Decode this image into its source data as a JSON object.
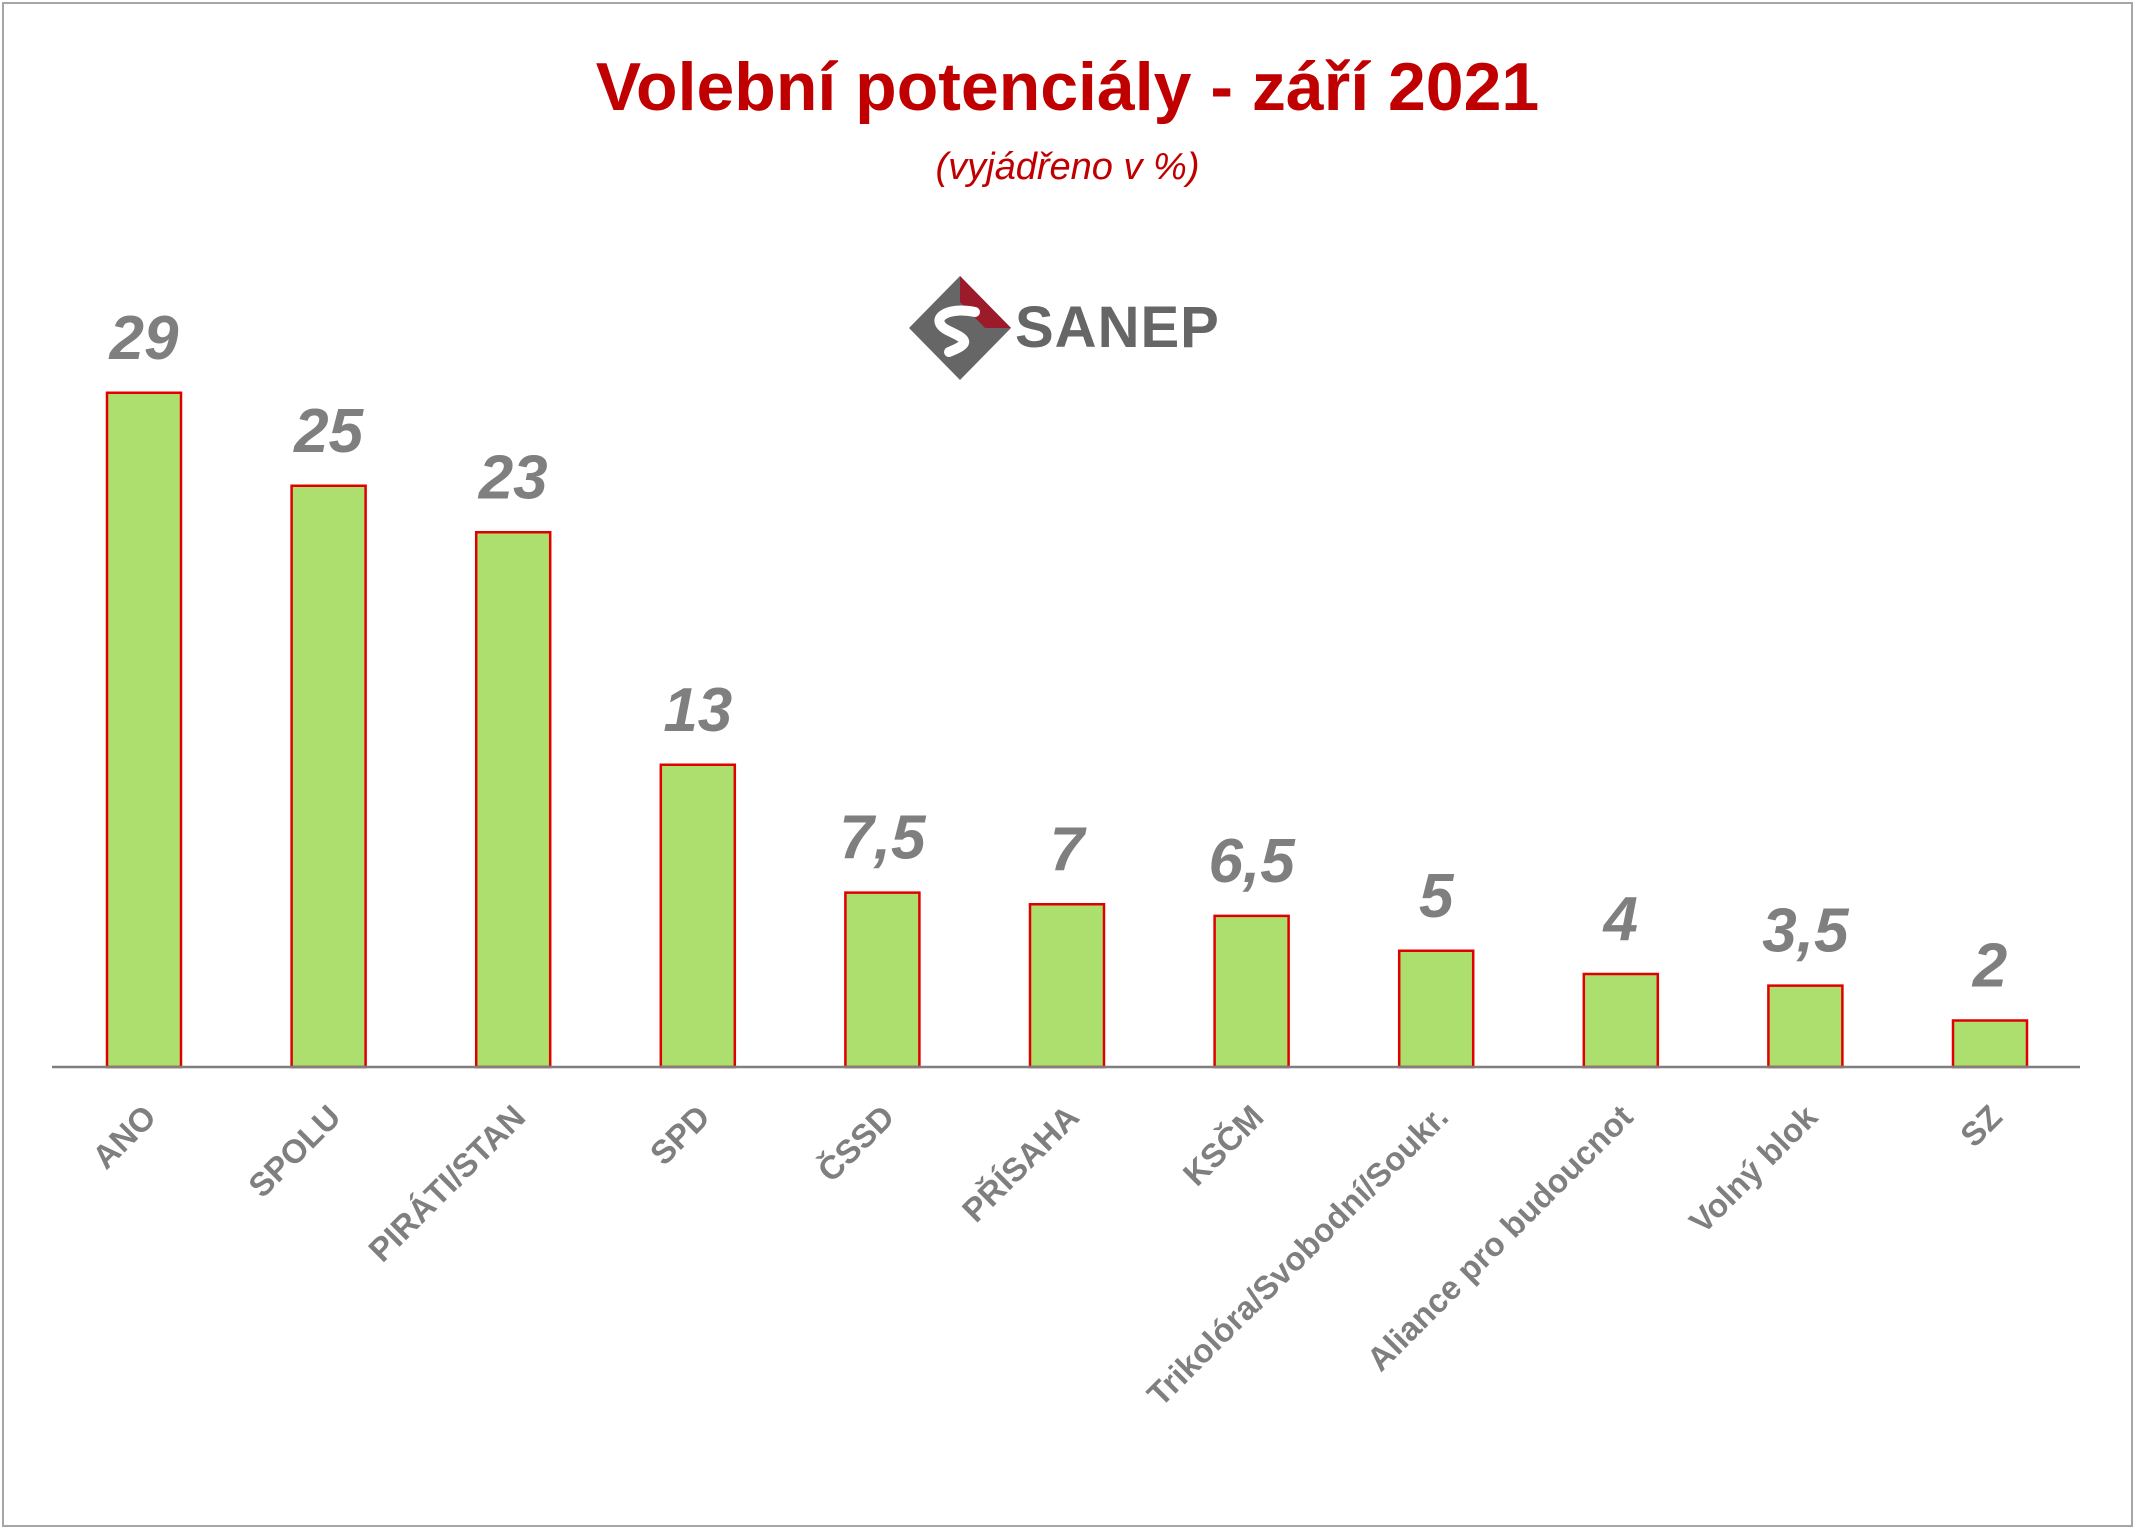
{
  "logo": {
    "name": "sanep-logo-icon",
    "text": "SANEP"
  },
  "colors": {
    "title": "#c00000",
    "bar_fill": "#addf6e",
    "bar_stroke": "#e00000",
    "labels": "#7f7f7f",
    "frame": "#a6a6a6"
  },
  "chart_data": {
    "type": "bar",
    "title": "Volební potenciály - září 2021",
    "subtitle": "(vyjádřeno v %)",
    "xlabel": "",
    "ylabel": "",
    "grid": false,
    "legend": "none",
    "ylim": [
      0,
      30
    ],
    "categories": [
      "ANO",
      "SPOLU",
      "PIRÁTI/STAN",
      "SPD",
      "ČSSD",
      "PŘÍSAHA",
      "KSČM",
      "Trikolóra/Svobodní/Soukr.",
      "Aliance pro budoucnot",
      "Volný blok",
      "SZ"
    ],
    "values": [
      29,
      25,
      23,
      13,
      7.5,
      7,
      6.5,
      5,
      4,
      3.5,
      2
    ],
    "value_labels": [
      "29",
      "25",
      "23",
      "13",
      "7,5",
      "7",
      "6,5",
      "5",
      "4",
      "3,5",
      "2"
    ]
  }
}
